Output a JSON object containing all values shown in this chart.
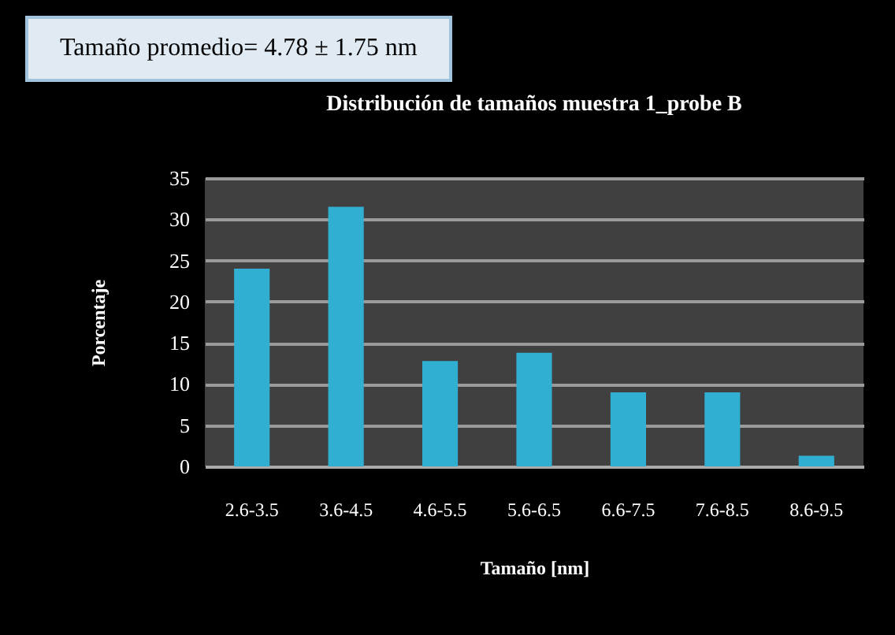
{
  "chart_data": {
    "type": "bar",
    "title": "Distribución de tamaños muestra 1_probe B",
    "xlabel": "Tamaño [nm]",
    "ylabel": "Porcentaje",
    "annotations": [
      "Tamaño promedio= 4.78 ± 1.75 nm"
    ],
    "categories": [
      "2.6-3.5",
      "3.6-4.5",
      "4.6-5.5",
      "5.6-6.5",
      "6.6-7.5",
      "7.6-8.5",
      "8.6-9.5"
    ],
    "values": [
      24,
      31.5,
      12.8,
      13.8,
      9,
      9,
      1.3
    ],
    "color": "#31afd2",
    "ylim": [
      0,
      35
    ],
    "yticks": [
      0,
      5,
      10,
      15,
      20,
      25,
      30,
      35
    ],
    "grid": "y"
  }
}
